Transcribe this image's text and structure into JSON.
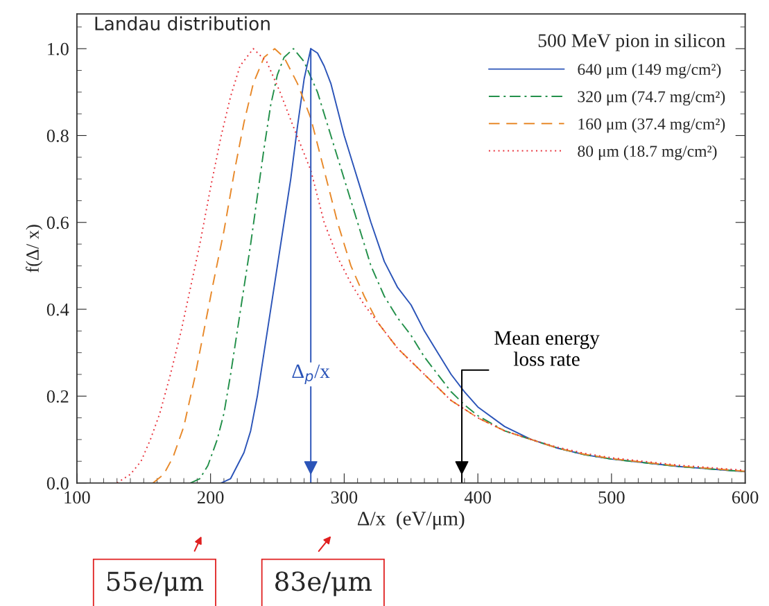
{
  "chart_data": {
    "type": "line",
    "title": "Landau distribution",
    "xlabel": "Δ/x  (eV/μm)",
    "ylabel": "f(Δ/ x)",
    "legend_title": "500 MeV pion in silicon",
    "xlim": [
      100,
      600
    ],
    "xticks": [
      100,
      200,
      300,
      400,
      500,
      600
    ],
    "ylim": [
      0,
      1.08
    ],
    "yticks": [
      {
        "value": 0,
        "label": "0.0"
      },
      0.2,
      0.4,
      0.6,
      0.8,
      {
        "value": 1,
        "label": "1.0"
      }
    ],
    "grid": false,
    "legend": "top right",
    "marker": "none",
    "series": [
      {
        "name": "640 μm (149 mg/cm²)",
        "color": "#2b54b8",
        "line_style": "solid",
        "x": [
          208,
          215,
          220,
          225,
          230,
          235,
          240,
          245,
          250,
          255,
          260,
          265,
          270,
          275,
          280,
          285,
          290,
          300,
          310,
          320,
          330,
          340,
          350,
          360,
          370,
          380,
          390,
          400,
          420,
          440,
          460,
          480,
          500,
          550,
          600
        ],
        "values": [
          0,
          0.01,
          0.04,
          0.07,
          0.12,
          0.2,
          0.3,
          0.4,
          0.5,
          0.6,
          0.7,
          0.82,
          0.93,
          1.0,
          0.99,
          0.96,
          0.92,
          0.8,
          0.7,
          0.6,
          0.51,
          0.45,
          0.41,
          0.35,
          0.3,
          0.25,
          0.21,
          0.175,
          0.13,
          0.1,
          0.08,
          0.065,
          0.055,
          0.038,
          0.026
        ]
      },
      {
        "name": "320 μm (74.7 mg/cm²)",
        "color": "#23904a",
        "line_style": "dashdot",
        "x": [
          185,
          192,
          198,
          205,
          210,
          215,
          220,
          225,
          230,
          235,
          240,
          245,
          250,
          255,
          262,
          270,
          280,
          290,
          300,
          310,
          320,
          330,
          340,
          350,
          360,
          370,
          380,
          390,
          400,
          420,
          440,
          460,
          480,
          500,
          550,
          600
        ],
        "values": [
          0,
          0.01,
          0.04,
          0.1,
          0.16,
          0.25,
          0.35,
          0.45,
          0.55,
          0.66,
          0.77,
          0.87,
          0.94,
          0.98,
          1.0,
          0.97,
          0.9,
          0.8,
          0.7,
          0.6,
          0.5,
          0.43,
          0.38,
          0.34,
          0.29,
          0.25,
          0.21,
          0.18,
          0.155,
          0.12,
          0.1,
          0.08,
          0.065,
          0.055,
          0.038,
          0.026
        ]
      },
      {
        "name": "160 μm (37.4 mg/cm²)",
        "color": "#e8892a",
        "line_style": "dashed",
        "x": [
          157,
          165,
          172,
          180,
          188,
          195,
          202,
          210,
          218,
          225,
          232,
          240,
          248,
          255,
          265,
          275,
          285,
          295,
          305,
          315,
          325,
          340,
          350,
          360,
          370,
          380,
          390,
          400,
          420,
          440,
          460,
          480,
          500,
          550,
          600
        ],
        "values": [
          0,
          0.02,
          0.06,
          0.13,
          0.24,
          0.35,
          0.46,
          0.58,
          0.72,
          0.83,
          0.92,
          0.98,
          1.0,
          0.98,
          0.92,
          0.84,
          0.72,
          0.6,
          0.5,
          0.43,
          0.37,
          0.31,
          0.28,
          0.25,
          0.22,
          0.19,
          0.17,
          0.15,
          0.12,
          0.1,
          0.08,
          0.066,
          0.056,
          0.039,
          0.027
        ]
      },
      {
        "name": "80 μm (18.7 mg/cm²)",
        "color": "#e8303a",
        "line_style": "dotted",
        "x": [
          130,
          140,
          148,
          155,
          162,
          170,
          178,
          185,
          192,
          200,
          208,
          215,
          222,
          232,
          242,
          252,
          262,
          275,
          285,
          295,
          305,
          315,
          325,
          340,
          350,
          360,
          370,
          380,
          390,
          400,
          420,
          440,
          460,
          480,
          500,
          550,
          600
        ],
        "values": [
          0,
          0.02,
          0.05,
          0.1,
          0.16,
          0.25,
          0.35,
          0.45,
          0.55,
          0.68,
          0.8,
          0.89,
          0.96,
          1.0,
          0.97,
          0.9,
          0.82,
          0.72,
          0.6,
          0.52,
          0.46,
          0.41,
          0.37,
          0.31,
          0.28,
          0.25,
          0.22,
          0.19,
          0.17,
          0.15,
          0.12,
          0.1,
          0.082,
          0.068,
          0.058,
          0.041,
          0.029
        ]
      }
    ],
    "ref_lines": [
      {
        "axis": "x",
        "value": 275,
        "label": "Δ$_{p}$/x",
        "color": "#2b54b8"
      },
      {
        "axis": "x",
        "value": 388,
        "label": "Mean energy\nloss rate",
        "color": "#000000"
      }
    ],
    "annotations": [
      "55e/μm",
      "83e/μm"
    ]
  }
}
